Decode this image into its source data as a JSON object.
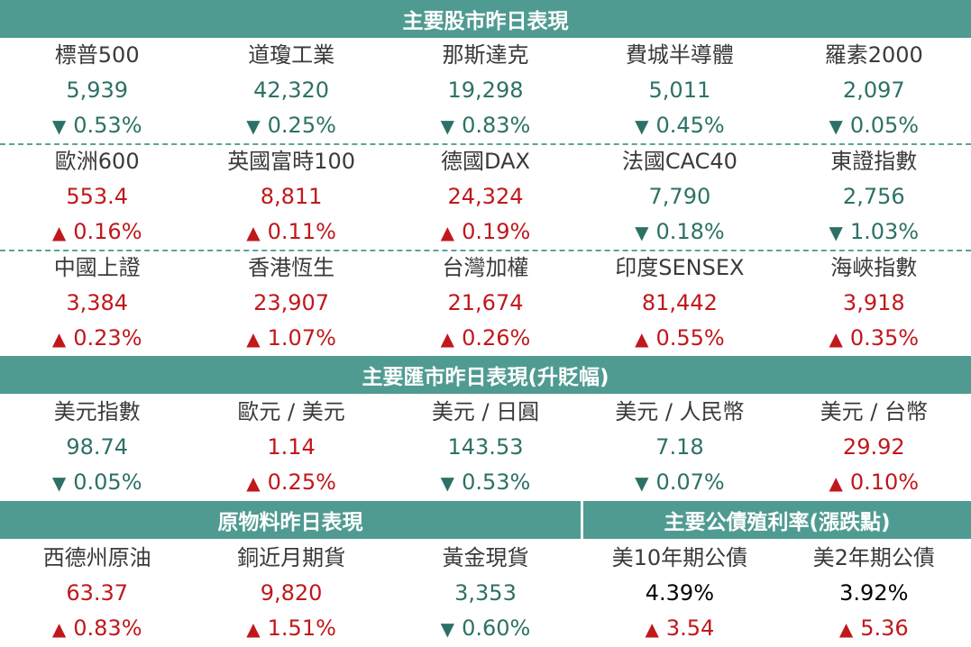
{
  "colors": {
    "header": "#4f9b91",
    "up": "#c0181c",
    "down": "#2d7166",
    "neutral": "#3a3a3a"
  },
  "stocks": {
    "title": "主要股市昨日表現",
    "rows": [
      [
        {
          "name": "標普500",
          "value": "5,939",
          "change": "0.53%",
          "dir": "down"
        },
        {
          "name": "道瓊工業",
          "value": "42,320",
          "change": "0.25%",
          "dir": "down"
        },
        {
          "name": "那斯達克",
          "value": "19,298",
          "change": "0.83%",
          "dir": "down"
        },
        {
          "name": "費城半導體",
          "value": "5,011",
          "change": "0.45%",
          "dir": "down"
        },
        {
          "name": "羅素2000",
          "value": "2,097",
          "change": "0.05%",
          "dir": "down"
        }
      ],
      [
        {
          "name": "歐洲600",
          "value": "553.4",
          "change": "0.16%",
          "dir": "up"
        },
        {
          "name": "英國富時100",
          "value": "8,811",
          "change": "0.11%",
          "dir": "up"
        },
        {
          "name": "德國DAX",
          "value": "24,324",
          "change": "0.19%",
          "dir": "up"
        },
        {
          "name": "法國CAC40",
          "value": "7,790",
          "change": "0.18%",
          "dir": "down"
        },
        {
          "name": "東證指數",
          "value": "2,756",
          "change": "1.03%",
          "dir": "down"
        }
      ],
      [
        {
          "name": "中國上證",
          "value": "3,384",
          "change": "0.23%",
          "dir": "up"
        },
        {
          "name": "香港恆生",
          "value": "23,907",
          "change": "1.07%",
          "dir": "up"
        },
        {
          "name": "台灣加權",
          "value": "21,674",
          "change": "0.26%",
          "dir": "up"
        },
        {
          "name": "印度SENSEX",
          "value": "81,442",
          "change": "0.55%",
          "dir": "up"
        },
        {
          "name": "海峽指數",
          "value": "3,918",
          "change": "0.35%",
          "dir": "up"
        }
      ]
    ]
  },
  "fx": {
    "title": "主要匯市昨日表現(升貶幅)",
    "row": [
      {
        "name": "美元指數",
        "value": "98.74",
        "change": "0.05%",
        "dir": "down"
      },
      {
        "name": "歐元 / 美元",
        "value": "1.14",
        "change": "0.25%",
        "dir": "up"
      },
      {
        "name": "美元 / 日圓",
        "value": "143.53",
        "change": "0.53%",
        "dir": "down"
      },
      {
        "name": "美元 / 人民幣",
        "value": "7.18",
        "change": "0.07%",
        "dir": "down"
      },
      {
        "name": "美元 / 台幣",
        "value": "29.92",
        "change": "0.10%",
        "dir": "up"
      }
    ]
  },
  "commodities": {
    "title": "原物料昨日表現",
    "row": [
      {
        "name": "西德州原油",
        "value": "63.37",
        "change": "0.83%",
        "dir": "up"
      },
      {
        "name": "銅近月期貨",
        "value": "9,820",
        "change": "1.51%",
        "dir": "up"
      },
      {
        "name": "黃金現貨",
        "value": "3,353",
        "change": "0.60%",
        "dir": "down"
      }
    ]
  },
  "bonds": {
    "title": "主要公債殖利率(漲跌點)",
    "row": [
      {
        "name": "美10年期公債",
        "value": "4.39%",
        "change": "3.54",
        "dir": "up",
        "value_dir": "neutral"
      },
      {
        "name": "美2年期公債",
        "value": "3.92%",
        "change": "5.36",
        "dir": "up",
        "value_dir": "neutral"
      }
    ]
  }
}
